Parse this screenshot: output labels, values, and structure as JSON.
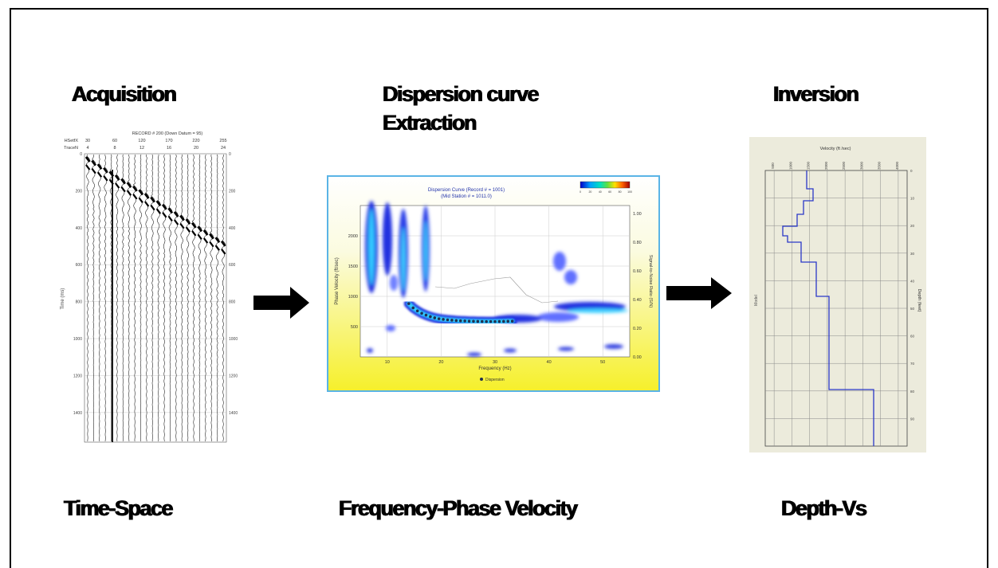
{
  "stages": {
    "acquisition": {
      "title": "Acquisition",
      "domain_label": "Time-Space"
    },
    "dispersion": {
      "title_line1": "Dispersion curve",
      "title_line2": "Extraction",
      "domain_label": "Frequency-Phase Velocity"
    },
    "inversion": {
      "title": "Inversion",
      "domain_label": "Depth-Vs"
    }
  },
  "seismogram": {
    "record_title": "RECORD # 200 (Down Datum = 95)",
    "row1_label": "HSetfX",
    "row1_values": [
      "30",
      "60",
      "120",
      "170",
      "220",
      "255"
    ],
    "row2_label": "TraceN",
    "row2_values": [
      "4",
      "8",
      "12",
      "16",
      "20",
      "24"
    ],
    "ylabel": "Time (ms)",
    "time_ticks": [
      "0",
      "200",
      "400",
      "600",
      "800",
      "1000",
      "1200",
      "1400"
    ]
  },
  "dispersion_plot": {
    "title_line1": "Dispersion Curve (Record # = 1001)",
    "title_line2": "(Mid Station # = 1011.0)",
    "xlabel": "Frequency (Hz)",
    "ylabel": "Phase Velocity (ft/sec)",
    "ylabel_right": "Signal-to-Noise Ratio (S/N)",
    "x_ticks": [
      "10",
      "20",
      "30",
      "40",
      "50"
    ],
    "y_ticks": [
      "2000",
      "1500",
      "1000",
      "500"
    ],
    "y2_ticks": [
      "1.00",
      "0.80",
      "0.60",
      "0.40",
      "0.20",
      "0.00"
    ],
    "legend": "Dispersion",
    "colorbar_ticks": [
      "0",
      "20",
      "40",
      "60",
      "80",
      "100"
    ]
  },
  "chart_data": {
    "type": "scatter",
    "title": "Dispersion Curve (Record # = 1001)",
    "xlabel": "Frequency (Hz)",
    "ylabel": "Phase Velocity (ft/sec)",
    "xlim": [
      5,
      55
    ],
    "ylim": [
      0,
      2500
    ],
    "series": [
      {
        "name": "Dispersion",
        "x": [
          14,
          14.8,
          15.6,
          16.4,
          17.2,
          18,
          18.8,
          19.6,
          20.4,
          21.2,
          22,
          22.8,
          23.6,
          24.4,
          25.2,
          26,
          26.8,
          27.6,
          28.4,
          29.2,
          30,
          30.8,
          31.6,
          32.4,
          33.2
        ],
        "y": [
          880,
          810,
          760,
          720,
          690,
          665,
          645,
          630,
          620,
          612,
          606,
          600,
          596,
          593,
          590,
          588,
          586,
          585,
          584,
          584,
          584,
          585,
          586,
          588,
          590
        ]
      }
    ]
  },
  "inversion_plot": {
    "xlabel": "Velocity (ft /sec)",
    "velocity_ticks": [
      "500",
      "1000",
      "1500",
      "2000",
      "2500",
      "3000",
      "3500",
      "4000"
    ],
    "depth_label": "Depth (feet)",
    "depth_ticks": [
      "0",
      "10",
      "20",
      "30",
      "40",
      "50",
      "60",
      "70",
      "80",
      "90"
    ],
    "left_label": "Model"
  }
}
